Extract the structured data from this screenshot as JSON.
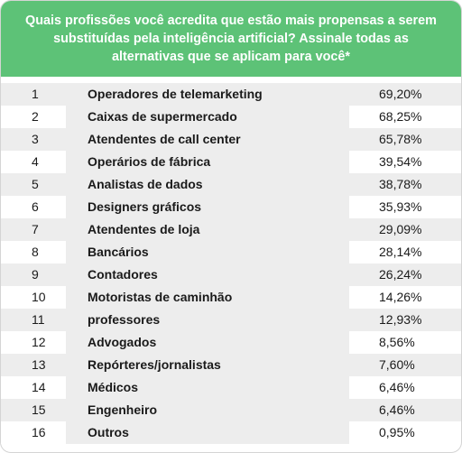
{
  "chart_data": {
    "type": "table",
    "title": "Quais profissões você acredita que estão mais propensas a serem substituídas pela inteligência artificial? Assinale todas as alternativas que se aplicam para você*",
    "rows": [
      {
        "rank": "1",
        "name": "Operadores de telemarketing",
        "value": "69,20%"
      },
      {
        "rank": "2",
        "name": "Caixas de supermercado",
        "value": "68,25%"
      },
      {
        "rank": "3",
        "name": "Atendentes de call center",
        "value": "65,78%"
      },
      {
        "rank": "4",
        "name": "Operários de fábrica",
        "value": "39,54%"
      },
      {
        "rank": "5",
        "name": "Analistas de dados",
        "value": "38,78%"
      },
      {
        "rank": "6",
        "name": "Designers gráficos",
        "value": "35,93%"
      },
      {
        "rank": "7",
        "name": "Atendentes de loja",
        "value": "29,09%"
      },
      {
        "rank": "8",
        "name": "Bancários",
        "value": "28,14%"
      },
      {
        "rank": "9",
        "name": "Contadores",
        "value": "26,24%"
      },
      {
        "rank": "10",
        "name": "Motoristas de caminhão",
        "value": "14,26%"
      },
      {
        "rank": "11",
        "name": "professores",
        "value": "12,93%"
      },
      {
        "rank": "12",
        "name": "Advogados",
        "value": "8,56%"
      },
      {
        "rank": "13",
        "name": "Repórteres/jornalistas",
        "value": "7,60%"
      },
      {
        "rank": "14",
        "name": "Médicos",
        "value": "6,46%"
      },
      {
        "rank": "15",
        "name": "Engenheiro",
        "value": "6,46%"
      },
      {
        "rank": "16",
        "name": "Outros",
        "value": "0,95%"
      }
    ]
  },
  "colors": {
    "header": "#5dc277",
    "header_text": "#ffffff",
    "stripe": "#ededed",
    "text": "#1a1a1a"
  }
}
